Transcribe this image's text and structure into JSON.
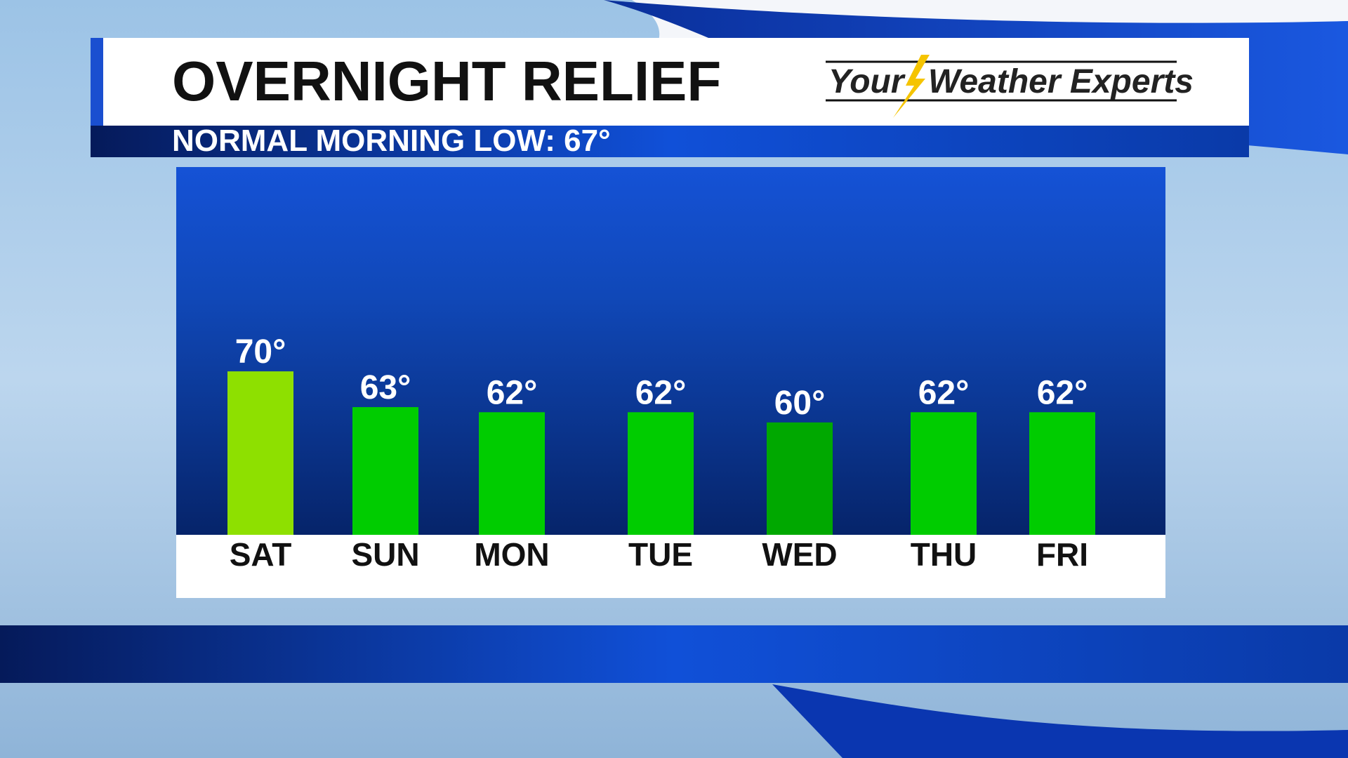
{
  "chart_data": {
    "type": "bar",
    "title": "OVERNIGHT RELIEF",
    "subtitle": "NORMAL MORNING LOW: 67°",
    "brand": [
      "Your",
      "Weather Experts"
    ],
    "categories": [
      "SAT",
      "SUN",
      "MON",
      "TUE",
      "WED",
      "THU",
      "FRI"
    ],
    "values": [
      70,
      63,
      62,
      62,
      60,
      62,
      62
    ],
    "value_labels": [
      "70°",
      "63°",
      "62°",
      "62°",
      "60°",
      "62°",
      "62°"
    ],
    "colors": [
      "#8ee000",
      "#00cc00",
      "#00cc00",
      "#00cc00",
      "#00a800",
      "#00cc00",
      "#00cc00"
    ],
    "ylim": [
      38,
      110
    ]
  }
}
